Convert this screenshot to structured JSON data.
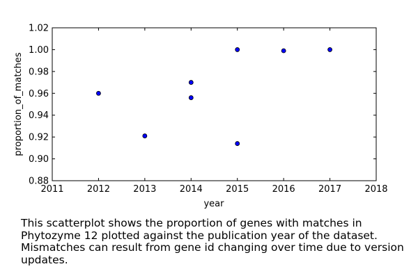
{
  "chart_data": {
    "type": "scatter",
    "xlabel": "year",
    "ylabel": "proportion_of_matches",
    "xlim": [
      2011,
      2018
    ],
    "ylim": [
      0.88,
      1.02
    ],
    "x_ticks": [
      "2011",
      "2012",
      "2013",
      "2014",
      "2015",
      "2016",
      "2017",
      "2018"
    ],
    "y_ticks": [
      "0.88",
      "0.90",
      "0.92",
      "0.94",
      "0.96",
      "0.98",
      "1.00",
      "1.02"
    ],
    "grid": false,
    "marker_color": "#0000ff",
    "points": [
      {
        "x": 2012,
        "y": 0.96
      },
      {
        "x": 2013,
        "y": 0.921
      },
      {
        "x": 2014,
        "y": 0.97
      },
      {
        "x": 2014,
        "y": 0.956
      },
      {
        "x": 2015,
        "y": 1.0
      },
      {
        "x": 2015,
        "y": 0.914
      },
      {
        "x": 2016,
        "y": 0.999
      },
      {
        "x": 2017,
        "y": 1.0
      }
    ]
  },
  "caption": "This scatterplot shows the proportion of genes with matches in Phytozyme 12 plotted against the publication year of the dataset. Mismatches can result from gene id changing over time due to version updates."
}
